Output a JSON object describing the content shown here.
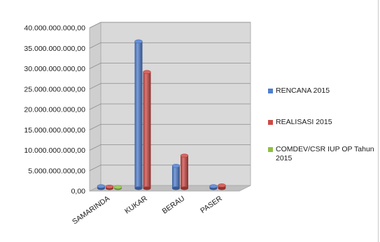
{
  "chart_data": {
    "type": "bar",
    "title": "",
    "xlabel": "",
    "ylabel": "",
    "categories": [
      "SAMARINDA",
      "KUKAR",
      "BERAU",
      "PASER"
    ],
    "ylim": [
      0,
      40000000000
    ],
    "yticks": [
      0,
      5000000000,
      10000000000,
      15000000000,
      20000000000,
      25000000000,
      30000000000,
      35000000000,
      40000000000
    ],
    "ytick_labels": [
      "0,00",
      "5.000.000.000,00",
      "10.000.000.000,00",
      "15.000.000.000,00",
      "20.000.000.000,00",
      "25.000.000.000,00",
      "30.000.000.000,00",
      "35.000.000.000,00",
      "40.000.000.000,00"
    ],
    "series": [
      {
        "name": "RENCANA 2015",
        "color": "#4f7fd0",
        "values": [
          500000000,
          36000000000,
          5500000000,
          500000000
        ]
      },
      {
        "name": "REALISASI 2015",
        "color": "#cf4a45",
        "values": [
          400000000,
          28500000000,
          8000000000,
          700000000
        ]
      },
      {
        "name": "COMDEV/CSR IUP OP Tahun 2015",
        "color": "#8fbf46",
        "values": [
          300000000,
          0,
          0,
          0
        ]
      }
    ],
    "grid": true,
    "legend": "right",
    "style": "3d-cylinder"
  }
}
